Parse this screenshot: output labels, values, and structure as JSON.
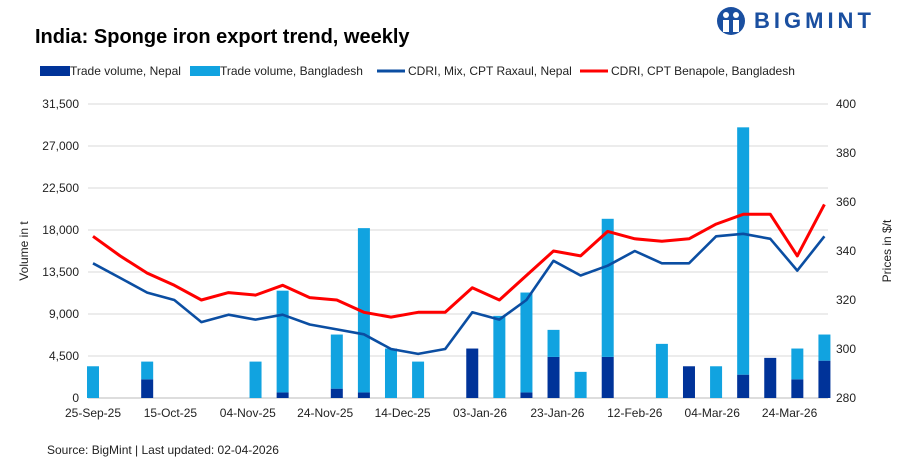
{
  "brand": {
    "logo_text": "BIGMINT",
    "color": "#1a4fa0"
  },
  "chart_data": {
    "type": "bar+line",
    "title": "India: Sponge iron export trend, weekly",
    "source": "Source: BigMint | Last updated: 02-04-2026",
    "ylabel": "Volume in t",
    "y2label": "Prices in $/t",
    "ylim": [
      0,
      31500
    ],
    "y2lim": [
      280,
      400
    ],
    "yticks": [
      "0",
      "4,500",
      "9,000",
      "13,500",
      "18,000",
      "22,500",
      "27,000",
      "31,500"
    ],
    "y2ticks": [
      "280",
      "300",
      "320",
      "340",
      "360",
      "380",
      "400"
    ],
    "xticks": [
      "25-Sep-25",
      "15-Oct-25",
      "04-Nov-25",
      "24-Nov-25",
      "14-Dec-25",
      "03-Jan-26",
      "23-Jan-26",
      "12-Feb-26",
      "04-Mar-26",
      "24-Mar-26"
    ],
    "grid": true,
    "legend_position": "top",
    "x": [
      "2025-09-25",
      "2025-10-02",
      "2025-10-09",
      "2025-10-16",
      "2025-10-23",
      "2025-10-30",
      "2025-11-06",
      "2025-11-13",
      "2025-11-20",
      "2025-11-27",
      "2025-12-04",
      "2025-12-11",
      "2025-12-18",
      "2025-12-25",
      "2026-01-01",
      "2026-01-08",
      "2026-01-15",
      "2026-01-22",
      "2026-01-29",
      "2026-02-05",
      "2026-02-12",
      "2026-02-19",
      "2026-02-26",
      "2026-03-05",
      "2026-03-12",
      "2026-03-19",
      "2026-03-26",
      "2026-04-02"
    ],
    "series": [
      {
        "name": "Trade volume, Nepal",
        "kind": "stacked-bar",
        "axis": "left",
        "color": "#003399",
        "values": [
          0,
          0,
          2000,
          0,
          0,
          0,
          0,
          600,
          0,
          1000,
          600,
          0,
          0,
          0,
          5300,
          0,
          600,
          4400,
          0,
          4400,
          0,
          0,
          3400,
          0,
          2500,
          4300,
          2000,
          4000
        ]
      },
      {
        "name": "Trade volume, Bangladesh",
        "kind": "stacked-bar",
        "axis": "left",
        "color": "#11a3e0",
        "values": [
          3400,
          0,
          1900,
          0,
          0,
          0,
          3900,
          10900,
          0,
          5800,
          17600,
          5300,
          3900,
          0,
          0,
          8800,
          10700,
          2900,
          2800,
          14800,
          0,
          5800,
          0,
          3400,
          26500,
          0,
          3300,
          2800
        ]
      },
      {
        "name": "CDRI, Mix, CPT Raxaul, Nepal",
        "kind": "line",
        "axis": "right",
        "color": "#0b4ea2",
        "values": [
          335,
          329,
          323,
          320,
          311,
          314,
          312,
          314,
          310,
          308,
          306,
          300,
          298,
          300,
          315,
          312,
          320,
          336,
          330,
          334,
          340,
          335,
          335,
          346,
          347,
          345,
          332,
          346
        ]
      },
      {
        "name": "CDRI, CPT Benapole, Bangladesh",
        "kind": "line",
        "axis": "right",
        "color": "#ff0000",
        "values": [
          346,
          338,
          331,
          326,
          320,
          323,
          322,
          326,
          321,
          320,
          315,
          313,
          315,
          315,
          325,
          320,
          330,
          340,
          338,
          348,
          345,
          344,
          345,
          351,
          355,
          355,
          338,
          359
        ]
      }
    ]
  }
}
